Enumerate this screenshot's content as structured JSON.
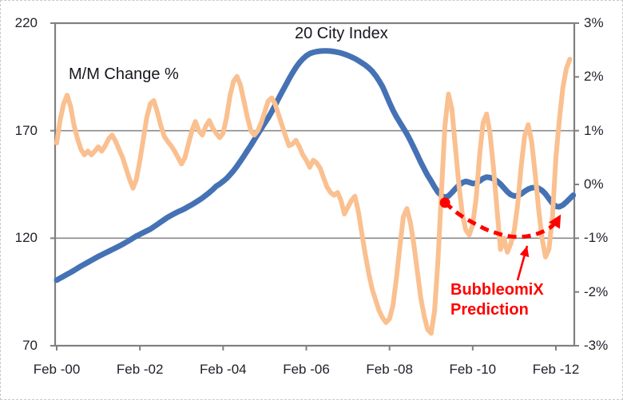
{
  "page": {
    "background": "#ffffff",
    "outer_border_color": "#c9c9c9"
  },
  "chart_data": {
    "type": "line",
    "title": "20 City Index",
    "right_series_label": "M/M Change %",
    "x_axis": {
      "start_month": "Feb-2000",
      "interval": "monthly",
      "tick_labels": [
        "Feb -00",
        "Feb -02",
        "Feb -04",
        "Feb -06",
        "Feb -08",
        "Feb -10",
        "Feb -12"
      ],
      "months_between_ticks": 24
    },
    "left_axis": {
      "min": 70,
      "max": 220,
      "ticks": [
        220,
        170,
        120,
        70
      ]
    },
    "right_axis": {
      "min": -3,
      "max": 3,
      "tick_labels": [
        "3%",
        "2%",
        "1%",
        "0%",
        "-1%",
        "-2%",
        "-3%"
      ],
      "tick_values": [
        3,
        2,
        1,
        0,
        -1,
        -2,
        -3
      ]
    },
    "gridlines_at_left_values": [
      170,
      120
    ],
    "grid_color": "#8a8a8a",
    "axis_color": "#808080",
    "series": [
      {
        "name": "20 City Index",
        "axis": "left",
        "color": "#4472B4",
        "stroke_width": 7,
        "values": [
          100.5,
          101.4,
          102.3,
          103.2,
          104.1,
          105,
          106,
          107,
          107.9,
          108.8,
          109.7,
          110.6,
          111.5,
          112.3,
          113.1,
          113.9,
          114.7,
          115.5,
          116.3,
          117.2,
          118.1,
          119,
          120,
          121,
          121.8,
          122.6,
          123.4,
          124.2,
          125.3,
          126.4,
          127.5,
          128.6,
          129.7,
          130.6,
          131.5,
          132.3,
          133,
          133.8,
          134.7,
          135.6,
          136.6,
          137.6,
          138.7,
          139.9,
          141.2,
          142.6,
          144.2,
          145.2,
          146.4,
          147.8,
          149.5,
          151.4,
          153.5,
          155.8,
          158.2,
          160.7,
          163.2,
          165.8,
          168.4,
          171,
          173.5,
          176,
          178.8,
          181.8,
          185,
          188,
          191,
          194,
          196.8,
          199.4,
          201.6,
          203.4,
          204.8,
          205.8,
          206.4,
          206.8,
          207,
          207.1,
          207.1,
          207,
          206.8,
          206.5,
          206.1,
          205.6,
          205,
          204.3,
          203.5,
          202.6,
          201.6,
          200.5,
          199.2,
          197.6,
          195.6,
          193.2,
          190.4,
          186.8,
          183,
          179.5,
          176.5,
          173.8,
          171.2,
          168.5,
          165.5,
          162.2,
          158.8,
          155.4,
          152.2,
          149.2,
          146.6,
          143.8,
          141.4,
          139.8,
          139,
          139.6,
          141.2,
          143,
          144.6,
          145.8,
          146.4,
          146,
          145.4,
          145.6,
          146.6,
          147.8,
          148.4,
          148.2,
          147.6,
          146.6,
          145.2,
          143.4,
          141.6,
          140.2,
          139.6,
          139.8,
          140.6,
          141.8,
          142.8,
          143.4,
          143.6,
          143.2,
          142.2,
          140.6,
          138.4,
          136.2,
          134.8,
          134.6,
          135.4,
          136.8,
          138.4,
          140
        ]
      },
      {
        "name": "M/M Change %",
        "axis": "right",
        "color": "#FAC090",
        "stroke_width": 6,
        "values": [
          0.77,
          1.2,
          1.5,
          1.66,
          1.45,
          1.1,
          0.85,
          0.65,
          0.55,
          0.62,
          0.55,
          0.62,
          0.7,
          0.62,
          0.72,
          0.85,
          0.92,
          0.8,
          0.65,
          0.5,
          0.3,
          0.1,
          -0.07,
          0.1,
          0.45,
          0.85,
          1.25,
          1.5,
          1.56,
          1.35,
          1.1,
          0.9,
          0.8,
          0.72,
          0.62,
          0.5,
          0.38,
          0.5,
          0.75,
          1.0,
          1.17,
          1.0,
          0.92,
          1.08,
          1.19,
          1.05,
          0.95,
          0.87,
          0.95,
          1.25,
          1.65,
          1.92,
          2.01,
          1.85,
          1.55,
          1.25,
          1.0,
          0.92,
          1.0,
          1.15,
          1.35,
          1.55,
          1.61,
          1.5,
          1.3,
          1.1,
          0.9,
          0.72,
          0.75,
          0.82,
          0.7,
          0.55,
          0.45,
          0.32,
          0.45,
          0.4,
          0.3,
          0.12,
          -0.05,
          -0.15,
          -0.2,
          -0.15,
          -0.3,
          -0.55,
          -0.42,
          -0.3,
          -0.22,
          -0.5,
          -0.9,
          -1.3,
          -1.65,
          -1.95,
          -2.15,
          -2.35,
          -2.48,
          -2.57,
          -2.5,
          -2.25,
          -1.75,
          -1.15,
          -0.6,
          -0.45,
          -0.7,
          -1.1,
          -1.6,
          -2.1,
          -2.45,
          -2.7,
          -2.77,
          -2.35,
          -1.4,
          -0.1,
          1.1,
          1.68,
          1.4,
          0.7,
          0.0,
          -0.55,
          -0.85,
          -0.94,
          -0.75,
          -0.25,
          0.55,
          1.15,
          1.31,
          0.95,
          0.3,
          -0.45,
          -1.21,
          -1.0,
          -1.26,
          -1.1,
          -0.85,
          -0.35,
          0.35,
          0.9,
          1.11,
          0.8,
          0.2,
          -0.45,
          -1.0,
          -1.35,
          -1.2,
          -0.6,
          0.5,
          1.2,
          1.8,
          2.15,
          2.33
        ]
      }
    ],
    "annotation": {
      "label_line1": "BubbleomiX",
      "label_line2": "Prediction",
      "color": "#ff0000",
      "prediction_curve": {
        "axis": "left",
        "dashed": true,
        "starts_with_dot": true,
        "ends_with_arrow": true,
        "points": [
          [
            112,
            136.5
          ],
          [
            116,
            131.2
          ],
          [
            120,
            127.3
          ],
          [
            124,
            124.0
          ],
          [
            128,
            121.8
          ],
          [
            131,
            120.8
          ],
          [
            134,
            120.6
          ],
          [
            137,
            121.3
          ],
          [
            140,
            122.9
          ],
          [
            143,
            125.8
          ],
          [
            144.5,
            129.9
          ]
        ]
      },
      "pointer_arrow": {
        "from": [
          647,
          350
        ],
        "to": [
          659,
          307
        ]
      }
    }
  }
}
